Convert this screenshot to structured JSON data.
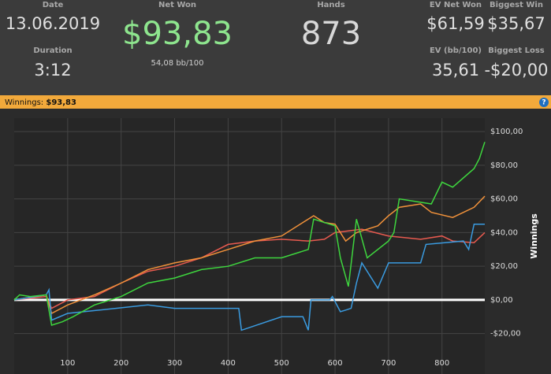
{
  "header": {
    "date": {
      "label": "Date",
      "value": "13.06.2019"
    },
    "duration": {
      "label": "Duration",
      "value": "3:12"
    },
    "net_won": {
      "label": "Net Won",
      "value": "$93,83",
      "sub": "54,08 bb/100"
    },
    "hands": {
      "label": "Hands",
      "value": "873"
    },
    "ev_net_won": {
      "label": "EV Net Won",
      "value": "$61,59"
    },
    "ev_bb": {
      "label": "EV (bb/100)",
      "value": "35,61"
    },
    "biggest_win": {
      "label": "Biggest Win",
      "value": "$35,67"
    },
    "biggest_loss": {
      "label": "Biggest Loss",
      "value": "-$20,00"
    }
  },
  "bar": {
    "label": "Winnings:",
    "value": "$93,83",
    "help": "?"
  },
  "chart_data": {
    "type": "line",
    "y_label": "Winnings",
    "xlim": [
      0,
      880
    ],
    "ylim": [
      -44,
      108
    ],
    "xticks": [
      100,
      200,
      300,
      400,
      500,
      600,
      700,
      800
    ],
    "yticks": [
      {
        "value": -20,
        "label": "-$20,00"
      },
      {
        "value": 0,
        "label": "$0,00"
      },
      {
        "value": 20,
        "label": "$20,00"
      },
      {
        "value": 40,
        "label": "$40,00"
      },
      {
        "value": 60,
        "label": "$60,00"
      },
      {
        "value": 80,
        "label": "$80,00"
      },
      {
        "value": 100,
        "label": "$100,00"
      }
    ],
    "grid": true,
    "zero_line_color": "#ffffff",
    "series": [
      {
        "color": "#e85a4f",
        "x": [
          0,
          60,
          70,
          100,
          150,
          200,
          250,
          300,
          350,
          400,
          450,
          500,
          550,
          580,
          600,
          650,
          700,
          760,
          800,
          820,
          860,
          880
        ],
        "values": [
          0,
          2,
          -5,
          0,
          2,
          10,
          17,
          20,
          25,
          33,
          35,
          36,
          35,
          36,
          40,
          42,
          38,
          36,
          38,
          35,
          34,
          40
        ]
      },
      {
        "color": "#f0913a",
        "x": [
          0,
          60,
          70,
          100,
          150,
          200,
          250,
          300,
          350,
          400,
          450,
          500,
          560,
          580,
          600,
          620,
          640,
          680,
          700,
          720,
          760,
          780,
          820,
          860,
          880
        ],
        "values": [
          0,
          3,
          -8,
          -3,
          3,
          10,
          18,
          22,
          25,
          30,
          35,
          38,
          50,
          46,
          45,
          35,
          40,
          44,
          50,
          55,
          57,
          52,
          49,
          55,
          61.59
        ]
      },
      {
        "color": "#3a9be0",
        "x": [
          0,
          60,
          65,
          70,
          100,
          160,
          250,
          300,
          420,
          425,
          500,
          540,
          550,
          555,
          590,
          595,
          610,
          620,
          630,
          640,
          650,
          680,
          700,
          760,
          770,
          840,
          850,
          860,
          880
        ],
        "values": [
          0,
          3,
          6,
          -12,
          -8,
          -6,
          -3,
          -5,
          -5,
          -18,
          -10,
          -10,
          -18,
          0,
          0,
          2,
          -7,
          -6,
          -5,
          10,
          22,
          7,
          22,
          22,
          33,
          35,
          30,
          45,
          45
        ]
      },
      {
        "color": "#3ed63e",
        "x": [
          0,
          10,
          30,
          60,
          70,
          90,
          110,
          150,
          200,
          250,
          300,
          350,
          400,
          450,
          500,
          550,
          560,
          600,
          610,
          625,
          640,
          660,
          700,
          710,
          720,
          780,
          800,
          820,
          860,
          870,
          880
        ],
        "values": [
          0,
          3,
          2,
          3,
          -15,
          -13,
          -10,
          -3,
          2,
          10,
          13,
          18,
          20,
          25,
          25,
          30,
          48,
          44,
          25,
          8,
          48,
          25,
          35,
          40,
          60,
          57,
          70,
          67,
          78,
          84,
          93.83
        ]
      }
    ]
  }
}
